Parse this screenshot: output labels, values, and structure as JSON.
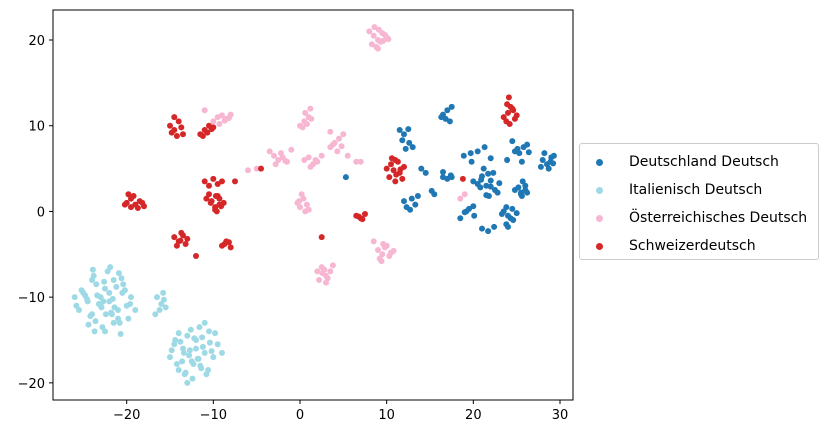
{
  "chart_data": {
    "type": "scatter",
    "title": "",
    "xlabel": "",
    "ylabel": "",
    "xlim": [
      -28.5,
      31.5
    ],
    "ylim": [
      -22,
      23.5
    ],
    "xticks": [
      -20,
      -10,
      0,
      10,
      20,
      30
    ],
    "yticks": [
      -20,
      -10,
      0,
      10,
      20
    ],
    "xtick_labels": [
      "−20",
      "−10",
      "0",
      "10",
      "20",
      "30"
    ],
    "ytick_labels": [
      "−20",
      "−10",
      "0",
      "10",
      "20"
    ],
    "grid": false,
    "legend_position": "center-right outside",
    "series": [
      {
        "name": "Deutschland Deutsch",
        "color": "#1f77b4",
        "x": [
          11.5,
          12.0,
          12.5,
          11.8,
          12.6,
          13.0,
          12.2,
          16.5,
          17.0,
          17.5,
          16.8,
          17.3,
          16.3,
          16.5,
          17.0,
          17.4,
          20.0,
          20.5,
          21.0,
          20.8,
          21.5,
          22.0,
          22.5,
          21.8,
          22.3,
          21.2,
          23.0,
          22.0,
          21.5,
          22.8,
          20.9,
          21.7,
          19.2,
          20.1,
          19.5,
          20.0,
          19.0,
          18.5,
          19.7,
          20.5,
          21.3,
          22.0,
          19.8,
          18.9,
          21.0,
          21.7,
          22.4,
          12.3,
          12.7,
          13.3,
          12.0,
          12.9,
          13.6,
          14.0,
          14.5,
          15.5,
          15.2,
          16.5,
          17.5,
          23.5,
          24.0,
          24.5,
          23.8,
          24.3,
          25.0,
          24.6,
          23.3,
          24.8,
          25.2,
          25.5,
          26.0,
          25.7,
          24.8,
          25.1,
          25.8,
          26.4,
          25.3,
          26.2,
          25.6,
          24.5,
          23.9,
          28.0,
          28.5,
          29.0,
          28.7,
          29.3,
          28.2,
          28.9,
          27.8,
          29.2,
          25.5,
          26.0,
          25.6,
          26.2,
          23.8,
          24.0,
          5.3
        ],
        "y": [
          9.5,
          9.0,
          9.6,
          8.3,
          8.0,
          7.5,
          7.3,
          11.3,
          11.8,
          12.2,
          10.8,
          10.5,
          11.0,
          4.0,
          3.8,
          4.2,
          3.5,
          3.2,
          4.1,
          2.8,
          3.0,
          3.6,
          2.5,
          1.8,
          4.5,
          5.0,
          3.3,
          2.9,
          1.9,
          2.2,
          3.7,
          4.4,
          0.0,
          -0.5,
          0.3,
          0.6,
          -0.1,
          -0.8,
          6.8,
          7.0,
          7.5,
          6.2,
          5.8,
          6.5,
          -2.0,
          -2.3,
          -1.8,
          0.5,
          0.2,
          0.8,
          1.2,
          1.5,
          1.8,
          5.0,
          4.5,
          2.0,
          2.4,
          4.6,
          4.0,
          0.0,
          -0.5,
          0.3,
          0.5,
          -0.8,
          -0.2,
          -1.0,
          -0.3,
          2.5,
          2.8,
          2.2,
          3.0,
          3.5,
          7.0,
          7.3,
          7.5,
          6.9,
          6.8,
          7.8,
          5.8,
          8.2,
          6.0,
          6.0,
          5.5,
          6.3,
          5.0,
          6.5,
          6.8,
          5.8,
          5.2,
          5.6,
          2.0,
          2.5,
          1.8,
          2.2,
          -1.5,
          -1.8,
          4.0
        ]
      },
      {
        "name": "Italienisch Deutsch",
        "color": "#9edae5",
        "x": [
          -26.0,
          -25.5,
          -25.0,
          -24.5,
          -24.0,
          -23.5,
          -23.0,
          -22.5,
          -22.0,
          -21.5,
          -21.0,
          -20.5,
          -20.0,
          -19.5,
          -19.0,
          -25.8,
          -24.8,
          -24.2,
          -23.8,
          -23.2,
          -22.8,
          -22.2,
          -21.8,
          -21.2,
          -20.8,
          -20.2,
          -19.8,
          -25.2,
          -24.6,
          -23.6,
          -22.6,
          -21.6,
          -20.6,
          -19.6,
          -24.4,
          -23.4,
          -22.4,
          -21.4,
          -20.4,
          -23.0,
          -22.0,
          -21.0,
          -22.5,
          -21.5,
          -24.0,
          -23.9,
          -20.9,
          -22.9,
          -21.9,
          -23.7,
          -22.7,
          -21.7,
          -20.7,
          -16.5,
          -16.0,
          -15.5,
          -16.2,
          -15.8,
          -16.7,
          -15.7,
          -15.0,
          -14.5,
          -14.0,
          -13.5,
          -13.0,
          -12.5,
          -12.0,
          -11.5,
          -11.0,
          -10.5,
          -10.0,
          -9.5,
          -9.0,
          -14.8,
          -14.2,
          -13.8,
          -13.2,
          -12.8,
          -12.2,
          -11.8,
          -11.2,
          -10.8,
          -10.2,
          -9.8,
          -14.4,
          -13.4,
          -12.4,
          -11.4,
          -10.4,
          -13.6,
          -12.6,
          -11.6,
          -10.6,
          -13.0,
          -12.0,
          -11.0,
          -12.3,
          -11.3,
          -14.0,
          -13.3,
          -12.7,
          -11.7
        ],
        "y": [
          -10.0,
          -11.5,
          -9.5,
          -10.5,
          -12.0,
          -8.5,
          -11.0,
          -9.0,
          -10.5,
          -8.0,
          -12.5,
          -9.5,
          -11.0,
          -10.0,
          -11.5,
          -11.0,
          -9.8,
          -12.2,
          -7.5,
          -10.8,
          -13.5,
          -7.0,
          -11.8,
          -8.8,
          -13.0,
          -9.2,
          -12.5,
          -9.2,
          -10.2,
          -12.8,
          -8.2,
          -10.2,
          -7.8,
          -10.8,
          -13.2,
          -9.8,
          -12.0,
          -11.2,
          -8.5,
          -10.0,
          -9.5,
          -11.5,
          -14.0,
          -13.0,
          -8.0,
          -6.8,
          -7.2,
          -11.2,
          -6.5,
          -14.0,
          -10.5,
          -12.0,
          -14.3,
          -10.0,
          -10.8,
          -11.2,
          -11.5,
          -9.5,
          -12.0,
          -10.3,
          -17.0,
          -15.5,
          -18.5,
          -16.0,
          -14.5,
          -17.5,
          -15.0,
          -18.0,
          -16.5,
          -14.0,
          -17.0,
          -15.5,
          -16.5,
          -16.2,
          -17.8,
          -15.2,
          -18.8,
          -16.8,
          -14.8,
          -17.2,
          -15.8,
          -19.0,
          -16.3,
          -14.2,
          -15.0,
          -16.5,
          -19.5,
          -18.3,
          -15.3,
          -17.5,
          -13.8,
          -13.5,
          -18.5,
          -20.0,
          -16.0,
          -13.0,
          -17.8,
          -14.7,
          -14.2,
          -19.0,
          -16.2,
          -17.2
        ]
      },
      {
        "name": "Österreichisches Deutsch",
        "color": "#f7b6d2",
        "x": [
          8.0,
          8.5,
          9.0,
          9.5,
          10.0,
          8.3,
          8.8,
          9.3,
          9.8,
          8.6,
          9.1,
          9.6,
          10.2,
          9.0,
          -11.0,
          -10.0,
          -9.5,
          -9.0,
          -8.5,
          -8.0,
          -9.3,
          -8.7,
          -8.2,
          0.0,
          0.5,
          1.0,
          1.2,
          0.3,
          0.8,
          1.3,
          0.6,
          -3.5,
          -3.0,
          -2.5,
          -2.0,
          -1.5,
          -1.0,
          -2.8,
          -2.2,
          -1.7,
          0.5,
          1.0,
          1.5,
          2.0,
          2.5,
          1.2,
          1.8,
          3.5,
          4.0,
          4.5,
          5.0,
          3.8,
          4.3,
          4.8,
          5.5,
          6.5,
          3.5,
          7.0,
          -0.3,
          0.0,
          0.4,
          0.8,
          1.0,
          -0.1,
          0.6,
          0.2,
          2.0,
          2.5,
          3.0,
          3.5,
          2.2,
          2.8,
          3.2,
          3.8,
          2.6,
          3.0,
          9.0,
          9.5,
          10.0,
          10.5,
          9.2,
          9.8,
          10.3,
          9.6,
          10.8,
          9.4,
          8.5,
          -6.0,
          -5.0,
          19.0,
          18.5
        ],
        "y": [
          21.0,
          20.5,
          20.0,
          20.8,
          20.3,
          19.5,
          19.2,
          19.8,
          20.6,
          21.5,
          21.2,
          19.9,
          20.1,
          19.0,
          11.8,
          10.5,
          11.0,
          11.2,
          10.8,
          11.3,
          10.2,
          10.6,
          10.9,
          10.0,
          10.5,
          11.0,
          12.0,
          9.8,
          10.2,
          10.8,
          11.5,
          7.0,
          6.5,
          6.0,
          6.3,
          5.8,
          7.2,
          5.5,
          6.8,
          5.9,
          6.0,
          6.3,
          5.5,
          5.8,
          6.5,
          5.2,
          6.0,
          7.5,
          8.0,
          8.5,
          9.0,
          7.8,
          7.0,
          7.6,
          6.5,
          5.8,
          9.3,
          5.8,
          1.0,
          0.5,
          1.5,
          0.8,
          0.2,
          1.2,
          0.0,
          2.0,
          -7.0,
          -6.5,
          -7.5,
          -7.0,
          -8.0,
          -6.8,
          -7.8,
          -6.3,
          -7.2,
          -8.3,
          -4.5,
          -5.0,
          -4.0,
          -4.8,
          -5.5,
          -4.2,
          -5.2,
          -3.8,
          -4.6,
          -5.8,
          -3.5,
          4.8,
          5.0,
          2.0,
          1.5
        ]
      },
      {
        "name": "Schweizerdeutsch",
        "color": "#d62728",
        "x": [
          -20.0,
          -19.5,
          -19.0,
          -18.5,
          -18.0,
          -19.8,
          -19.2,
          -18.7,
          -18.2,
          -19.5,
          -20.2,
          -15.0,
          -14.5,
          -14.0,
          -13.5,
          -14.8,
          -14.2,
          -13.7,
          -14.5,
          -11.5,
          -11.0,
          -10.5,
          -10.0,
          -11.2,
          -10.7,
          -10.2,
          -11.0,
          -10.5,
          -10.0,
          -9.5,
          -9.0,
          -10.8,
          -10.3,
          -9.8,
          -9.3,
          -10.5,
          -9.5,
          -9.8,
          -9.3,
          -8.8,
          -10.2,
          -9.6,
          -9.1,
          -9.7,
          -14.5,
          -14.0,
          -13.5,
          -13.0,
          -14.2,
          -13.7,
          -13.2,
          -13.8,
          -9.0,
          -8.5,
          -8.0,
          -8.7,
          -8.2,
          -7.5,
          -12.0,
          -4.5,
          2.5,
          6.5,
          7.0,
          7.5,
          6.8,
          7.2,
          10.0,
          10.5,
          11.0,
          11.5,
          12.0,
          10.3,
          10.8,
          11.3,
          11.8,
          10.6,
          11.1,
          11.6,
          11.0,
          23.5,
          24.0,
          24.5,
          25.0,
          23.8,
          24.3,
          24.8,
          24.1,
          24.6,
          23.9,
          24.2,
          18.8
        ],
        "y": [
          1.0,
          1.5,
          0.8,
          1.2,
          0.6,
          2.0,
          1.8,
          0.4,
          1.0,
          0.5,
          0.8,
          10.0,
          9.5,
          10.5,
          9.0,
          9.2,
          8.8,
          9.8,
          11.0,
          9.0,
          9.5,
          10.0,
          9.8,
          8.8,
          9.2,
          9.6,
          3.5,
          3.0,
          3.8,
          3.2,
          3.5,
          1.5,
          1.0,
          0.5,
          0.8,
          2.0,
          1.8,
          0.2,
          1.5,
          1.0,
          1.2,
          0.0,
          0.6,
          1.8,
          -3.0,
          -3.5,
          -2.8,
          -3.2,
          -4.0,
          -2.5,
          -3.8,
          -3.4,
          -4.0,
          -3.5,
          -4.2,
          -3.8,
          -3.6,
          3.5,
          -5.2,
          5.0,
          -3.0,
          -0.5,
          -0.8,
          -0.3,
          -0.6,
          -0.9,
          5.0,
          5.5,
          6.0,
          4.5,
          5.2,
          4.0,
          4.8,
          5.8,
          3.8,
          6.2,
          4.3,
          4.9,
          3.5,
          11.0,
          11.5,
          12.0,
          11.2,
          10.5,
          12.2,
          10.8,
          13.3,
          11.8,
          12.5,
          10.2,
          3.8
        ]
      }
    ]
  }
}
